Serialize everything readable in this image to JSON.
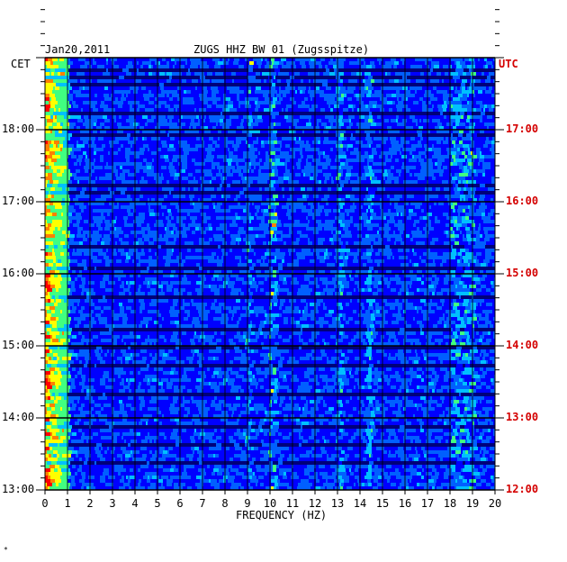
{
  "header": {
    "date": "Jan20,2011",
    "station": "ZUGS HHZ BW 01 (Zugsspitze)"
  },
  "timezones": {
    "left": "CET",
    "right": "UTC"
  },
  "footer_mark": "*",
  "chart_data": {
    "type": "heatmap",
    "title": "ZUGS HHZ BW 01 (Zugsspitze)",
    "date": "Jan20,2011",
    "xlabel": "FREQUENCY (HZ)",
    "ylabel_left": "CET",
    "ylabel_right": "UTC",
    "xlim": [
      0,
      20
    ],
    "x_ticks": [
      "0",
      "1",
      "2",
      "3",
      "4",
      "5",
      "6",
      "7",
      "8",
      "9",
      "10",
      "11",
      "12",
      "13",
      "14",
      "15",
      "16",
      "17",
      "18",
      "19",
      "20"
    ],
    "y_ticks_left": [
      "18:00",
      "17:00",
      "16:00",
      "15:00",
      "14:00",
      "13:00"
    ],
    "y_ticks_right": [
      "17:00",
      "16:00",
      "15:00",
      "14:00",
      "13:00",
      "12:00"
    ],
    "time_range_cet": [
      "13:00",
      "18:50"
    ],
    "colorscale": [
      "#00007a",
      "#0000ff",
      "#0060ff",
      "#00c0ff",
      "#40ff80",
      "#ffff00",
      "#ff8000",
      "#ff0000"
    ],
    "energy_features": [
      {
        "freq_hz": [
          0,
          1.0
        ],
        "level": "high",
        "note": "strong low-frequency energy throughout"
      },
      {
        "freq_hz": [
          8.9,
          9.1
        ],
        "level": "medium"
      },
      {
        "freq_hz": [
          9.9,
          10.2
        ],
        "level": "medium-high"
      },
      {
        "freq_hz": [
          12.9,
          13.2
        ],
        "level": "medium"
      },
      {
        "freq_hz": [
          14.2,
          14.5
        ],
        "level": "medium"
      },
      {
        "freq_hz": [
          18.0,
          19.0
        ],
        "level": "medium",
        "times_cet": [
          "16:12",
          "15:35"
        ]
      }
    ]
  }
}
